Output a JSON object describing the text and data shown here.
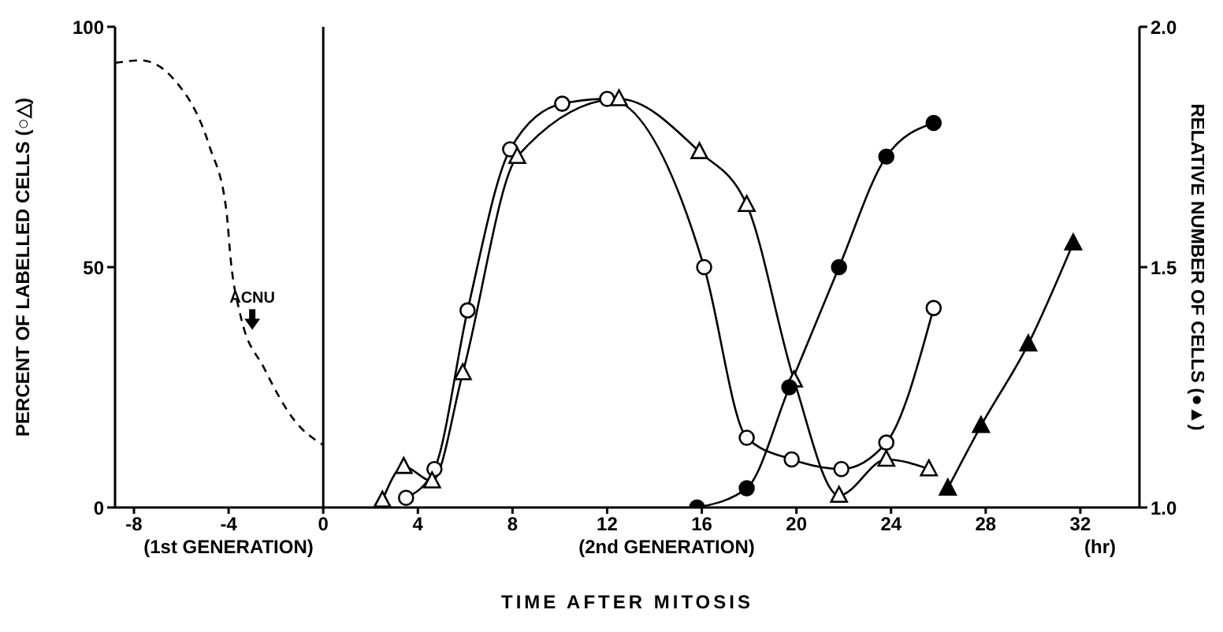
{
  "chart_data": {
    "type": "line",
    "xlabel": "TIME AFTER MITOSIS",
    "ylabel": "PERCENT OF LABELLED CELLS (○△)",
    "y2label": "RELATIVE NUMBER OF CELLS (●▲)",
    "xlim": [
      -8.8,
      34.5
    ],
    "xticks": [
      -8,
      -4,
      0,
      4,
      8,
      12,
      16,
      20,
      24,
      28,
      32
    ],
    "ylim": [
      0,
      100
    ],
    "yticks": [
      0,
      50,
      100
    ],
    "y2lim": [
      1,
      2
    ],
    "y2ticks": [
      {
        "value": 1,
        "label": "1.0"
      },
      {
        "value": 1.5,
        "label": "1.5"
      },
      {
        "value": 2,
        "label": "2.0"
      }
    ],
    "ref_lines": [
      {
        "axis": "x",
        "value": 0,
        "label": null,
        "color": "#000000",
        "line_style": "solid"
      }
    ],
    "annotations": [
      {
        "text": "ACNU",
        "x": -3,
        "y": 36
      },
      "(1st GENERATION)",
      "(2nd GENERATION)",
      "(hr)"
    ],
    "series": [
      {
        "color": "#000000",
        "marker": "none",
        "line_style": "dashed",
        "x": [
          -8.8,
          -7.7,
          -6.3,
          -4.8,
          -4.1,
          -3.9,
          -3.5,
          -2.5,
          -1.2,
          0
        ],
        "values": [
          92.5,
          93,
          89,
          75,
          62,
          51,
          40,
          29,
          18,
          13
        ]
      },
      {
        "color": "#000000",
        "marker": "circle",
        "line_style": "solid",
        "x": [
          3.5,
          4.7,
          6.1,
          7.9,
          10.1,
          12,
          16.1,
          17.9,
          19.8,
          21.9,
          23.8,
          25.8
        ],
        "values": [
          2,
          8,
          41,
          74.5,
          84,
          85,
          50,
          14.5,
          10,
          8,
          13.5,
          41.5
        ]
      },
      {
        "color": "#000000",
        "marker": "triangle",
        "line_style": "solid",
        "x": [
          2.5,
          3.4,
          4.6,
          5.9,
          8.2,
          12.5,
          15.9,
          17.9,
          19.9,
          21.8,
          23.8,
          25.6
        ],
        "values": [
          1.5,
          8.5,
          5.5,
          28,
          73,
          85,
          74,
          63,
          26.5,
          2.5,
          10,
          8
        ]
      },
      {
        "color": "#000000",
        "marker": "circle",
        "line_style": "solid",
        "axis": "y2",
        "x": [
          15.8,
          17.9,
          19.7,
          21.8,
          23.8,
          25.8
        ],
        "values": [
          1.0,
          1.04,
          1.25,
          1.5,
          1.73,
          1.8
        ]
      },
      {
        "color": "#000000",
        "marker": "triangle",
        "line_style": "solid",
        "axis": "y2",
        "x": [
          26.4,
          27.8,
          29.8,
          31.7
        ],
        "values": [
          1.04,
          1.17,
          1.34,
          1.55
        ]
      }
    ]
  }
}
